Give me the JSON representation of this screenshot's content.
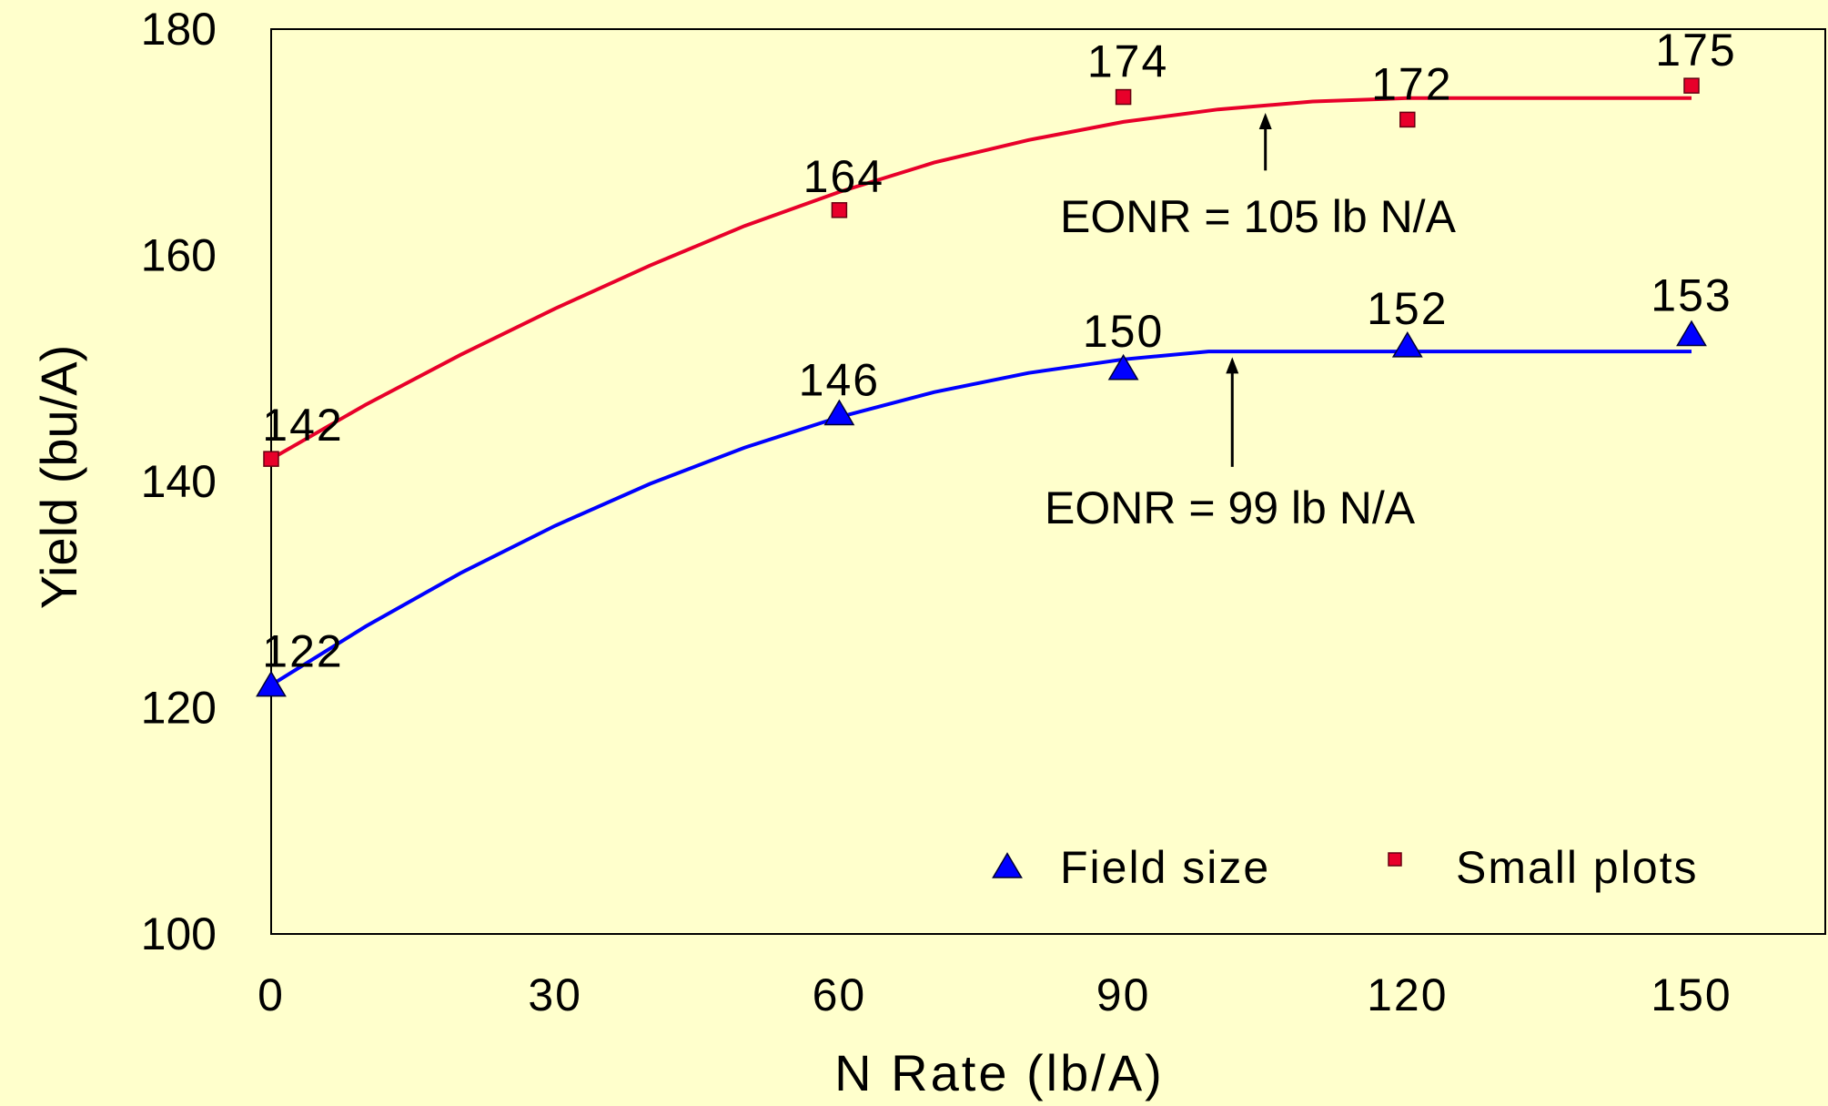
{
  "chart_data": {
    "type": "line",
    "title": "",
    "xlabel": "N Rate (lb/A)",
    "ylabel": "Yield (bu/A)",
    "xlim": [
      0,
      160
    ],
    "ylim": [
      100,
      180
    ],
    "xticks": [
      0,
      30,
      60,
      90,
      120,
      150
    ],
    "yticks": [
      100,
      120,
      140,
      160,
      180
    ],
    "grid": false,
    "legend_position": "bottom-right",
    "series": [
      {
        "name": "Field size",
        "marker": "triangle",
        "color": "#0000ff",
        "points": [
          [
            0,
            122
          ],
          [
            60,
            146
          ],
          [
            90,
            150
          ],
          [
            120,
            152
          ],
          [
            150,
            153
          ]
        ],
        "point_labels": [
          "122",
          "146",
          "150",
          "152",
          "153"
        ],
        "fit_curve": [
          [
            0,
            122
          ],
          [
            10,
            127.2
          ],
          [
            20,
            131.9
          ],
          [
            30,
            136.1
          ],
          [
            40,
            139.8
          ],
          [
            50,
            143.0
          ],
          [
            60,
            145.7
          ],
          [
            70,
            147.9
          ],
          [
            80,
            149.6
          ],
          [
            90,
            150.8
          ],
          [
            99,
            151.5
          ],
          [
            110,
            151.5
          ],
          [
            120,
            151.5
          ],
          [
            130,
            151.5
          ],
          [
            140,
            151.5
          ],
          [
            150,
            151.5
          ]
        ]
      },
      {
        "name": "Small plots",
        "marker": "square",
        "color": "#e8002a",
        "points": [
          [
            0,
            142
          ],
          [
            60,
            164
          ],
          [
            90,
            174
          ],
          [
            120,
            172
          ],
          [
            150,
            175
          ]
        ],
        "point_labels": [
          "142",
          "164",
          "174",
          "172",
          "175"
        ],
        "fit_curve": [
          [
            0,
            142
          ],
          [
            10,
            146.8
          ],
          [
            20,
            151.2
          ],
          [
            30,
            155.3
          ],
          [
            40,
            159.1
          ],
          [
            50,
            162.6
          ],
          [
            60,
            165.6
          ],
          [
            70,
            168.2
          ],
          [
            80,
            170.2
          ],
          [
            90,
            171.8
          ],
          [
            100,
            172.9
          ],
          [
            110,
            173.6
          ],
          [
            120,
            173.9
          ],
          [
            130,
            173.9
          ],
          [
            140,
            173.9
          ],
          [
            150,
            173.9
          ]
        ]
      }
    ],
    "annotations": [
      {
        "text": "EONR = 105 lb N/A",
        "arrow_x": 105,
        "arrow_from_y": 167.5,
        "arrow_to_y": 172.6
      },
      {
        "text": "EONR = 99 lb N/A",
        "arrow_x": 101.5,
        "arrow_from_y": 141.3,
        "arrow_to_y": 151.0
      }
    ]
  }
}
